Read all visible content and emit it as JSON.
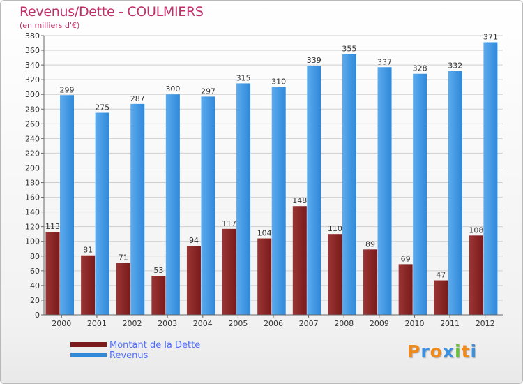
{
  "title": "Revenus/Dette - COULMIERS",
  "subtitle": "(en milliers d'€)",
  "logo": {
    "text": "Proxiti",
    "letters": [
      "P",
      "r",
      "o",
      "x",
      "i",
      "t",
      "i"
    ],
    "colors": [
      "#f08a1c",
      "#3b8fe0",
      "#f08a1c",
      "#3b8fe0",
      "#6cc13a",
      "#f08a1c",
      "#3b8fe0"
    ]
  },
  "colors": {
    "dette": "#7a1a1a",
    "dette_light": "#9a3535",
    "revenus": "#2f88d8",
    "revenus_light": "#5cabee",
    "grid": "#cfcfcf",
    "text": "#333333"
  },
  "chart_data": {
    "type": "bar",
    "title": "Revenus/Dette - COULMIERS",
    "subtitle": "(en milliers d'€)",
    "categories": [
      "2000",
      "2001",
      "2002",
      "2003",
      "2004",
      "2005",
      "2006",
      "2007",
      "2008",
      "2009",
      "2010",
      "2011",
      "2012"
    ],
    "series": [
      {
        "name": "Montant de la Dette",
        "values": [
          113,
          81,
          71,
          53,
          94,
          117,
          104,
          148,
          110,
          89,
          69,
          47,
          108
        ]
      },
      {
        "name": "Revenus",
        "values": [
          299,
          275,
          287,
          300,
          297,
          315,
          310,
          339,
          355,
          337,
          328,
          332,
          371
        ]
      }
    ],
    "ylim": [
      0,
      380
    ],
    "ytick_step": 20,
    "grid": true,
    "legend": "bottom-left"
  }
}
